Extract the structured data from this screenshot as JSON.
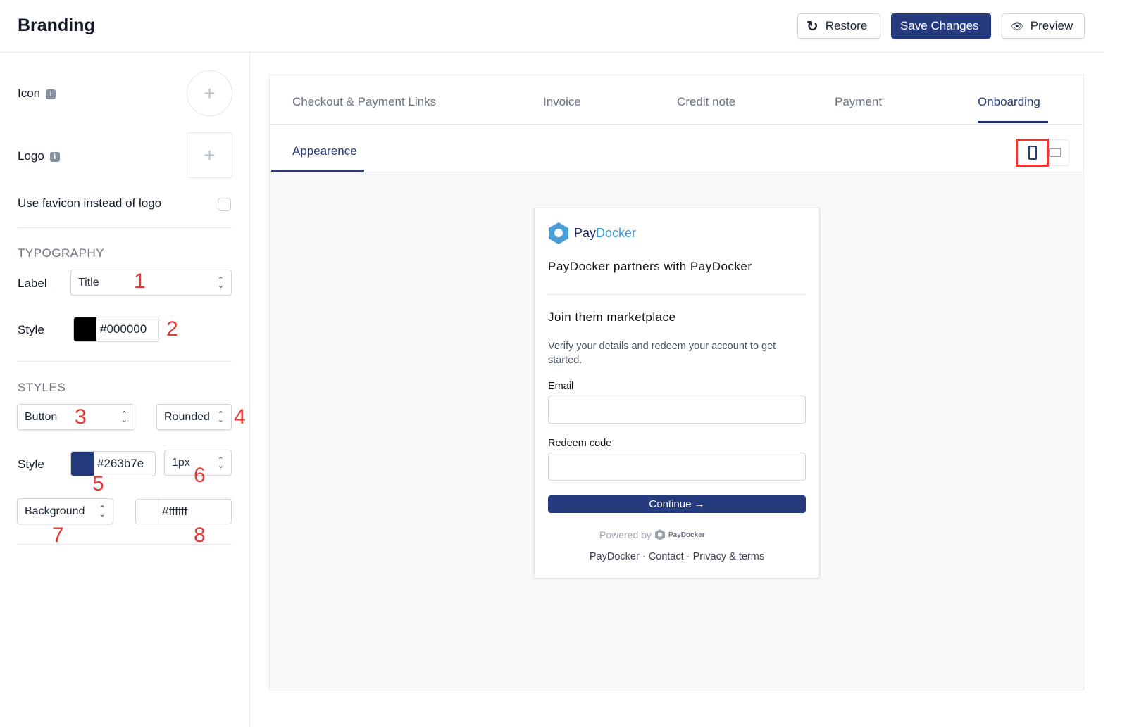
{
  "header": {
    "title": "Branding",
    "restore": "Restore",
    "save": "Save Changes",
    "preview": "Preview"
  },
  "sidebar": {
    "icon_label": "Icon",
    "logo_label": "Logo",
    "favicon_label": "Use favicon instead of logo",
    "favicon_checked": false,
    "typography": {
      "heading": "TYPOGRAPHY",
      "label_label": "Label",
      "label_value": "Title",
      "style_label": "Style",
      "style_color": "#000000"
    },
    "styles": {
      "heading": "STYLES",
      "type_value": "Button",
      "shape_value": "Rounded",
      "style_label": "Style",
      "style_color": "#263b7e",
      "border_value": "1px",
      "bg_select": "Background",
      "bg_color": "#ffffff"
    }
  },
  "annotations": [
    "1",
    "2",
    "3",
    "4",
    "5",
    "6",
    "7",
    "8"
  ],
  "tabs": [
    {
      "label": "Checkout & Payment Links"
    },
    {
      "label": "Invoice"
    },
    {
      "label": "Credit note"
    },
    {
      "label": "Payment"
    },
    {
      "label": "Onboarding",
      "active": true
    }
  ],
  "subtab": "Appearence",
  "device": {
    "selected": "mobile"
  },
  "card": {
    "brand_pay": "Pay",
    "brand_docker": "Docker",
    "heading": "PayDocker partners with PayDocker",
    "subheading": "Join them marketplace",
    "description": "Verify your details and redeem your account to get started.",
    "email_label": "Email",
    "redeem_label": "Redeem code",
    "continue": "Continue →",
    "powered_by": "Powered by",
    "powered_brand": "PayDocker",
    "footer_links": [
      "PayDocker",
      "Contact",
      "Privacy & terms"
    ]
  },
  "colors": {
    "accent": "#263b7e",
    "logo": "#4a9fd8",
    "annotation": "#e53935"
  }
}
